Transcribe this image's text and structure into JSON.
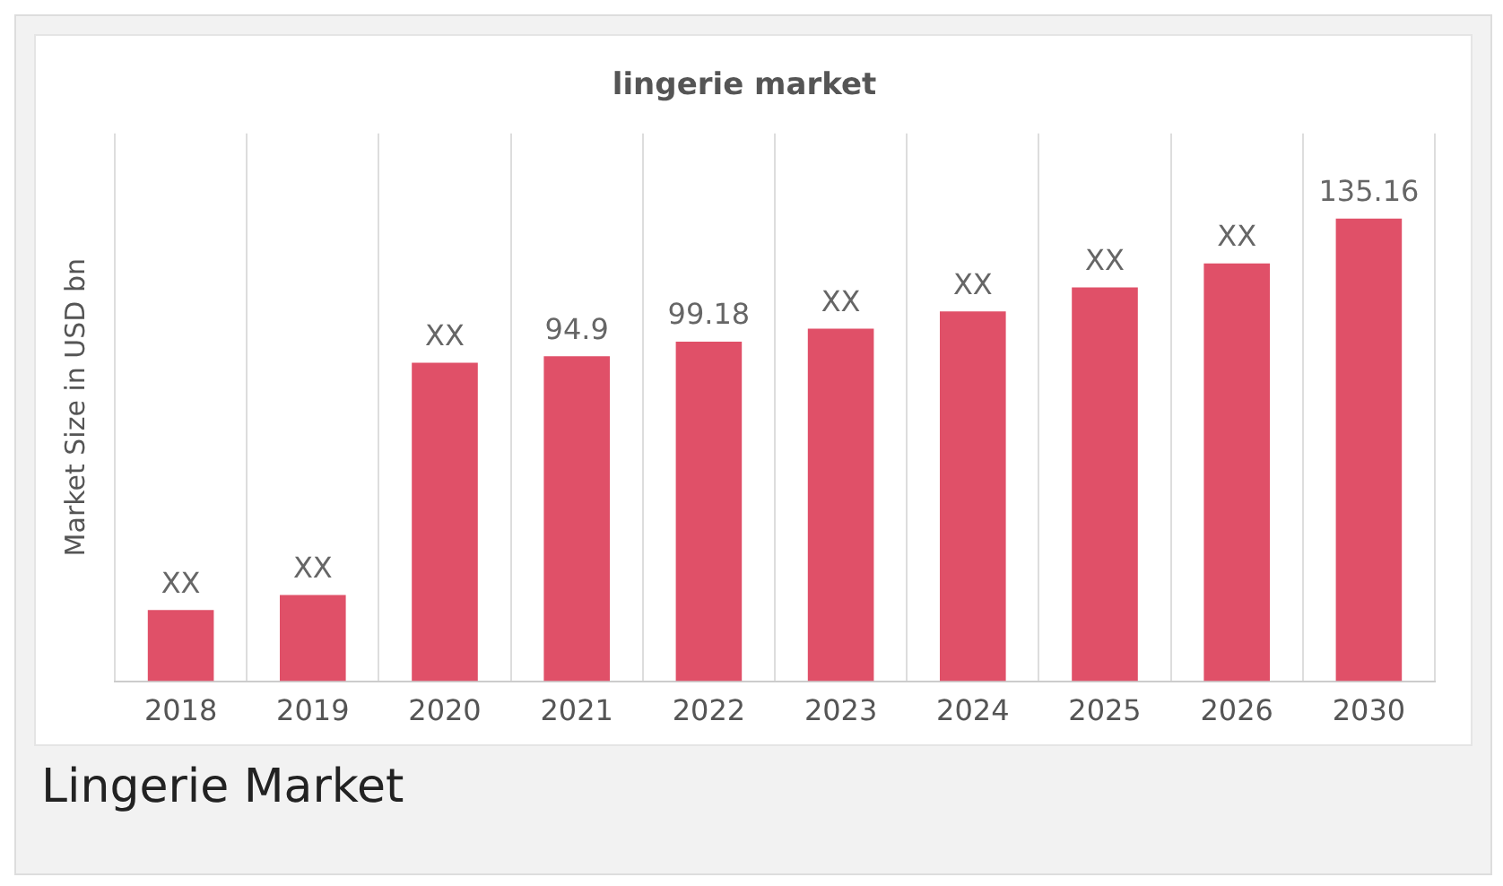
{
  "chart_data": {
    "type": "bar",
    "title": "lingerie market",
    "ylabel": "Market Size in USD bn",
    "categories": [
      "2018",
      "2019",
      "2020",
      "2021",
      "2022",
      "2023",
      "2024",
      "2025",
      "2026",
      "2030"
    ],
    "values": [
      20.8,
      25.2,
      93,
      94.9,
      99.18,
      103,
      108,
      115,
      122,
      135.16
    ],
    "value_labels": [
      "XX",
      "XX",
      "XX",
      "94.9",
      "99.18",
      "XX",
      "XX",
      "XX",
      "XX",
      "135.16"
    ],
    "color": "#e05068",
    "grid": "x",
    "tick_labels": "x",
    "legend": false,
    "annotations": [
      "Lingerie Market"
    ]
  }
}
